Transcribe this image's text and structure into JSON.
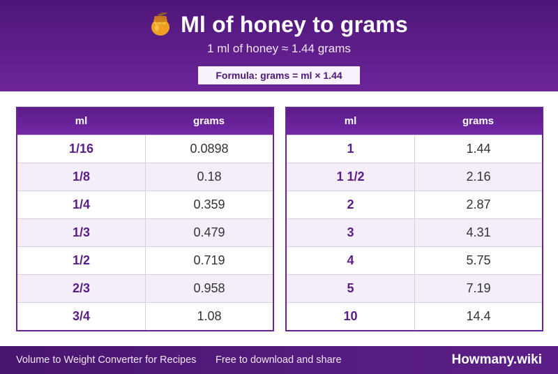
{
  "header": {
    "title": "Ml of honey to grams",
    "subtitle": "1 ml of honey ≈ 1.44 grams",
    "formula": "Formula: grams = ml × 1.44",
    "icon": "honey-pot-icon"
  },
  "tables": [
    {
      "columns": [
        "ml",
        "grams"
      ],
      "rows": [
        {
          "ml": "1/16",
          "grams": "0.0898"
        },
        {
          "ml": "1/8",
          "grams": "0.18"
        },
        {
          "ml": "1/4",
          "grams": "0.359"
        },
        {
          "ml": "1/3",
          "grams": "0.479"
        },
        {
          "ml": "1/2",
          "grams": "0.719"
        },
        {
          "ml": "2/3",
          "grams": "0.958"
        },
        {
          "ml": "3/4",
          "grams": "1.08"
        }
      ]
    },
    {
      "columns": [
        "ml",
        "grams"
      ],
      "rows": [
        {
          "ml": "1",
          "grams": "1.44"
        },
        {
          "ml": "1 1/2",
          "grams": "2.16"
        },
        {
          "ml": "2",
          "grams": "2.87"
        },
        {
          "ml": "3",
          "grams": "4.31"
        },
        {
          "ml": "4",
          "grams": "5.75"
        },
        {
          "ml": "5",
          "grams": "7.19"
        },
        {
          "ml": "10",
          "grams": "14.4"
        }
      ]
    }
  ],
  "footer": {
    "left": "Volume to Weight Converter for Recipes",
    "middle": "Free to download and share",
    "brand": "Howmany.wiki"
  },
  "colors": {
    "header_purple": "#5a1c88",
    "accent_purple": "#6a249a",
    "row_alt": "#f4eefa"
  }
}
